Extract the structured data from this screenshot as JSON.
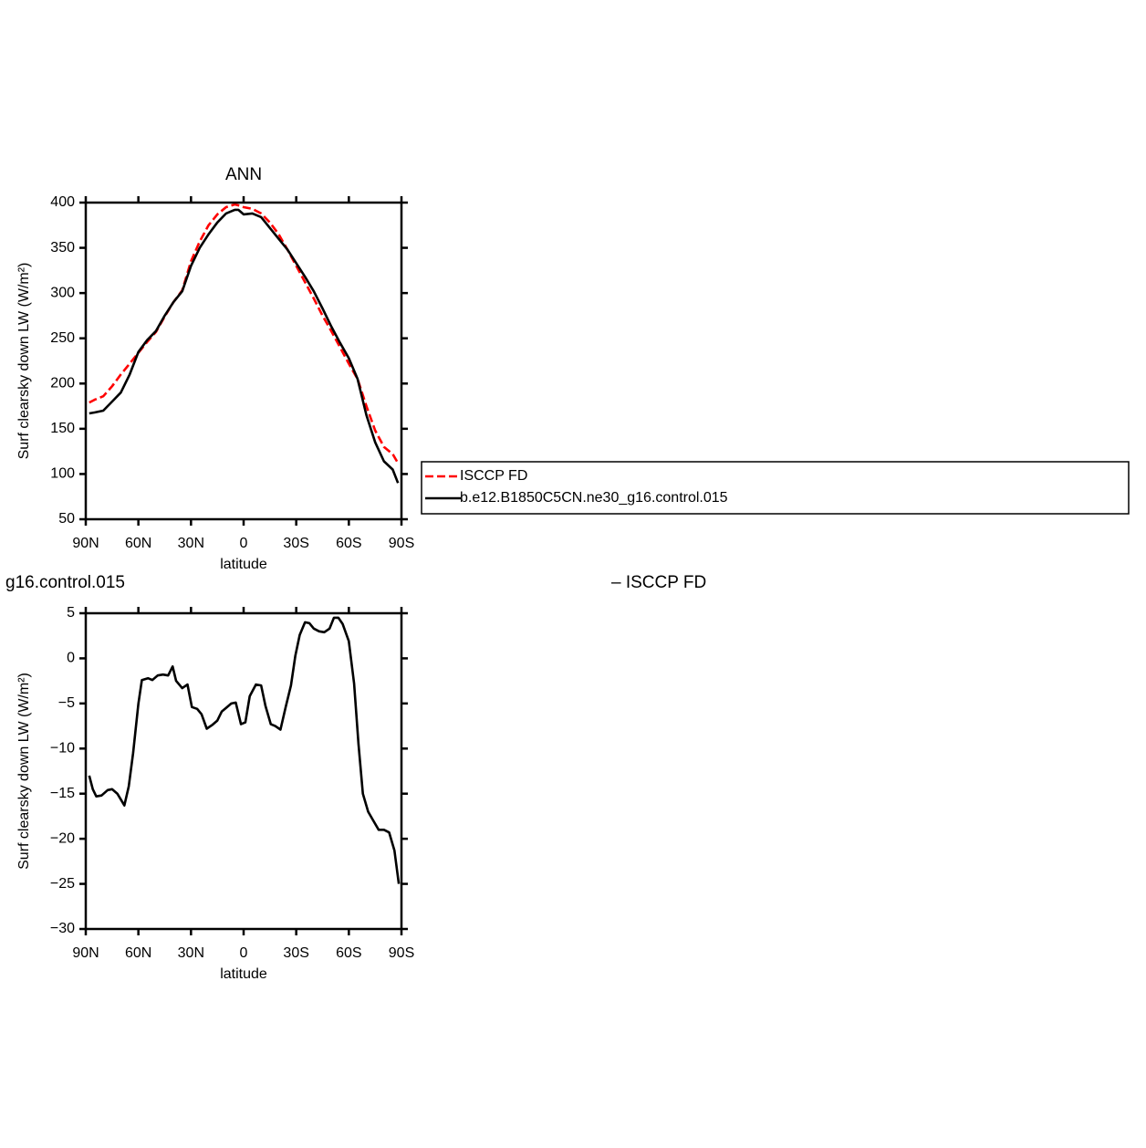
{
  "chart_data": [
    {
      "type": "line",
      "title": "ANN",
      "ylabel": "Surf clearsky down LW (W/m²)",
      "xlabel": "latitude",
      "xlim": [
        90,
        -90
      ],
      "xticks": [
        {
          "value": 90,
          "label": "90N"
        },
        {
          "value": 60,
          "label": "60N"
        },
        {
          "value": 30,
          "label": "30N"
        },
        0,
        {
          "value": -30,
          "label": "30S"
        },
        {
          "value": -60,
          "label": "60S"
        },
        {
          "value": -90,
          "label": "90S"
        }
      ],
      "ylim": [
        50,
        400
      ],
      "yticks": [
        50,
        100,
        150,
        200,
        250,
        300,
        350,
        400
      ],
      "legend": "outside right",
      "x": [
        88,
        85,
        80,
        75,
        70,
        65,
        60,
        55,
        50,
        45,
        40,
        35,
        30,
        25,
        20,
        15,
        10,
        5,
        3,
        0,
        -5,
        -10,
        -15,
        -20,
        -25,
        -30,
        -35,
        -40,
        -45,
        -50,
        -55,
        -60,
        -65,
        -70,
        -75,
        -80,
        -85,
        -88
      ],
      "series": [
        {
          "name": "ISCCP FD",
          "color": "#ff0000",
          "dash": "dashed",
          "values": [
            179,
            182,
            186,
            197,
            210,
            222,
            234,
            246,
            257,
            274,
            290,
            303,
            335,
            357,
            375,
            387,
            395,
            398,
            397,
            395,
            393,
            388,
            378,
            365,
            348,
            330,
            312,
            294,
            275,
            258,
            240,
            222,
            205,
            175,
            148,
            130,
            122,
            112
          ]
        },
        {
          "name": "b.e12.B1850C5CN.ne30_g16.control.015",
          "color": "#000000",
          "dash": "solid",
          "values": [
            167,
            168,
            170,
            180,
            190,
            210,
            235,
            248,
            258,
            275,
            290,
            302,
            330,
            350,
            365,
            378,
            388,
            392,
            392,
            387,
            388,
            384,
            372,
            360,
            348,
            333,
            318,
            302,
            283,
            263,
            245,
            228,
            205,
            165,
            135,
            114,
            105,
            90
          ]
        }
      ]
    },
    {
      "type": "line",
      "title": "g16.control.015",
      "title_right": "– ISCCP FD",
      "ylabel": "Surf clearsky down LW (W/m²)",
      "xlabel": "latitude",
      "xlim": [
        90,
        -90
      ],
      "xticks": [
        {
          "value": 90,
          "label": "90N"
        },
        {
          "value": 60,
          "label": "60N"
        },
        {
          "value": 30,
          "label": "30N"
        },
        0,
        {
          "value": -30,
          "label": "30S"
        },
        {
          "value": -60,
          "label": "60S"
        },
        {
          "value": -90,
          "label": "90S"
        }
      ],
      "ylim": [
        -30,
        5
      ],
      "yticks": [
        {
          "value": -30,
          "label": "−30"
        },
        {
          "value": -25,
          "label": "−25"
        },
        {
          "value": -20,
          "label": "−20"
        },
        {
          "value": -15,
          "label": "−15"
        },
        {
          "value": -10,
          "label": "−10"
        },
        {
          "value": -5,
          "label": "−5"
        },
        0,
        5
      ],
      "x": [
        88,
        86,
        84,
        81,
        77.5,
        75,
        72,
        68,
        65.5,
        63,
        60,
        58,
        54.5,
        52,
        49,
        46,
        43,
        40.5,
        38.5,
        35,
        32,
        29.5,
        26.5,
        24,
        21,
        18,
        15,
        12.5,
        10,
        7,
        4.5,
        1.5,
        -1,
        -3.5,
        -7,
        -10,
        -12.5,
        -15.5,
        -18,
        -21,
        -24,
        -27,
        -29.5,
        -32,
        -35,
        -37.5,
        -40,
        -43,
        -46,
        -49,
        -51.5,
        -54,
        -56.5,
        -60,
        -63,
        -65.5,
        -68,
        -71,
        -74,
        -77,
        -80,
        -83,
        -86,
        -88.5
      ],
      "series": [
        {
          "name": null,
          "color": "#000000",
          "dash": "solid",
          "values": [
            -13,
            -14.5,
            -15.3,
            -15.2,
            -14.6,
            -14.5,
            -15,
            -16.3,
            -14.2,
            -10.5,
            -5,
            -2.4,
            -2.2,
            -2.4,
            -1.9,
            -1.8,
            -1.9,
            -0.9,
            -2.5,
            -3.3,
            -2.9,
            -5.4,
            -5.6,
            -6.2,
            -7.8,
            -7.4,
            -6.9,
            -5.9,
            -5.5,
            -5,
            -4.9,
            -7.3,
            -7.1,
            -4.2,
            -2.9,
            -3,
            -5.3,
            -7.3,
            -7.5,
            -7.9,
            -5.4,
            -3,
            0.3,
            2.6,
            4,
            3.9,
            3.3,
            3,
            2.9,
            3.3,
            4.5,
            4.5,
            3.8,
            1.9,
            -2.8,
            -9.5,
            -15,
            -17,
            -18,
            -19,
            -19,
            -19.3,
            -21.3,
            -25
          ]
        }
      ]
    }
  ]
}
